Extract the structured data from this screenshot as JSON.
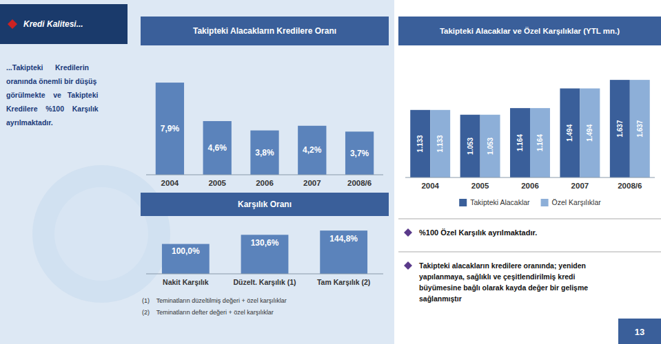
{
  "chart_data": [
    {
      "type": "bar",
      "title": "Takipteki Alacakların Kredilere Oranı",
      "categories": [
        "2004",
        "2005",
        "2006",
        "2007",
        "2008/6"
      ],
      "values": [
        7.9,
        4.6,
        3.8,
        4.2,
        3.7
      ],
      "value_labels": [
        "7,9%",
        "4,6%",
        "3,8%",
        "4,2%",
        "3,7%"
      ],
      "color": "#5b83bb",
      "ylim": [
        0,
        10.5
      ],
      "tick_labels": "x",
      "data_labels": true,
      "grid": false,
      "annotations": [
        "Kredi Kalitesi...",
        "...Takipteki      Kredilerin",
        "oranında önemli bir düşüş",
        "görülmekte    ve   Takipteki",
        "Kredilere    %100    Karşılık",
        "ayrılmaktadır."
      ]
    },
    {
      "type": "bar",
      "title": "Takipteki Alacaklar ve Özel Karşılıklar (YTL mn.)",
      "categories": [
        "2004",
        "2005",
        "2006",
        "2007",
        "2008/6"
      ],
      "series": [
        {
          "name": "Takipteki Alacaklar",
          "color": "#3a5f9a",
          "values": [
            1133,
            1053,
            1164,
            1494,
            1637
          ],
          "value_labels": [
            "1.133",
            "1.053",
            "1.164",
            "1.494",
            "1.637"
          ]
        },
        {
          "name": "Özel Karşılıklar",
          "color": "#8dafd8",
          "values": [
            1133,
            1053,
            1164,
            1494,
            1637
          ],
          "value_labels": [
            "1.133",
            "1.053",
            "1.164",
            "1.494",
            "1.637"
          ]
        }
      ],
      "ylim": [
        0,
        2100
      ],
      "tick_labels": "x",
      "data_labels": true,
      "grid": false,
      "legend": "bottom",
      "annotations": [
        "%100 Özel Karşılık ayrılmaktadır.",
        "Takipteki alacakların kredilere oranında; yeniden\nyapılanmaya, sağlıklı ve çeşitlendirilmiş kredi\nbüyümesine bağlı olarak kayda değer bir gelişme\nsağlanmıştır"
      ]
    },
    {
      "type": "bar",
      "title": "Karşılık Oranı",
      "categories": [
        "Nakit Karşılık",
        "Düzelt. Karşılık (1)",
        "Tam Karşılık (2)"
      ],
      "values": [
        100.0,
        130.6,
        144.8
      ],
      "value_labels": [
        "100,0%",
        "130,6%",
        "144,8%"
      ],
      "color": "#5b83bb",
      "ylim": [
        0,
        175
      ],
      "tick_labels": "x",
      "data_labels": true,
      "grid": false,
      "annotations": [
        "(1)    Teminatların düzeltilmiş değeri + özel karşılıklar",
        "(2)    Teminatların defter değeri + özel karşılıklar",
        "13"
      ]
    }
  ]
}
